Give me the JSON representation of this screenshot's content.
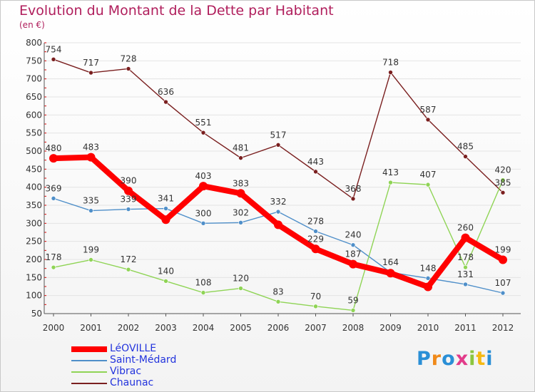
{
  "header": {
    "title": "Evolution du Montant de la Dette par Habitant",
    "unit": "(en €)"
  },
  "logo": {
    "text": "Proxiti"
  },
  "colors": {
    "title": "#b01e5c",
    "axis": "#555555",
    "grid": "#e4e4e4",
    "tick_minor": "#e00000",
    "legend_text": "#2233dd"
  },
  "chart_data": {
    "type": "line",
    "title": "Evolution du Montant de la Dette par Habitant",
    "xlabel": "",
    "ylabel": "(en €)",
    "categories": [
      "2000",
      "2001",
      "2002",
      "2003",
      "2004",
      "2005",
      "2006",
      "2007",
      "2008",
      "2009",
      "2010",
      "2011",
      "2012"
    ],
    "ylim": [
      50,
      800
    ],
    "yticks": [
      50,
      100,
      150,
      200,
      250,
      300,
      350,
      400,
      450,
      500,
      550,
      600,
      650,
      700,
      750,
      800
    ],
    "grid": true,
    "legend_position": "bottom-left",
    "series": [
      {
        "name": "LéOVILLE",
        "color": "#ff0000",
        "values": [
          480,
          483,
          390,
          310,
          403,
          383,
          296,
          229,
          187,
          162,
          124,
          260,
          199
        ],
        "labels": [
          "480",
          "483",
          "390",
          "",
          "403",
          "383",
          "",
          "229",
          "187",
          "",
          "",
          "260",
          "199"
        ]
      },
      {
        "name": "Saint-Médard",
        "color": "#4f8fc9",
        "values": [
          369,
          335,
          339,
          341,
          300,
          302,
          332,
          278,
          240,
          164,
          148,
          131,
          107
        ],
        "labels": [
          "369",
          "335",
          "339",
          "341",
          "300",
          "302",
          "332",
          "278",
          "240",
          "164",
          "148",
          "131",
          "107"
        ]
      },
      {
        "name": "Vibrac",
        "color": "#8fd455",
        "values": [
          178,
          199,
          172,
          140,
          108,
          120,
          83,
          70,
          59,
          413,
          407,
          178,
          420
        ],
        "labels": [
          "178",
          "199",
          "172",
          "140",
          "108",
          "120",
          "83",
          "70",
          "59",
          "413",
          "407",
          "178",
          "420"
        ]
      },
      {
        "name": "Chaunac",
        "color": "#7a1f1f",
        "values": [
          754,
          717,
          728,
          636,
          551,
          481,
          517,
          443,
          368,
          718,
          587,
          485,
          385
        ],
        "labels": [
          "754",
          "717",
          "728",
          "636",
          "551",
          "481",
          "517",
          "443",
          "368",
          "718",
          "587",
          "485",
          "385"
        ]
      }
    ]
  }
}
